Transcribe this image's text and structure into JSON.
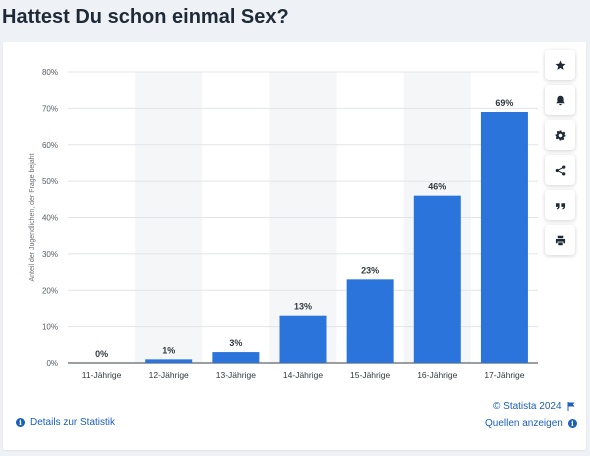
{
  "page": {
    "title": "Hattest Du schon einmal Sex?"
  },
  "chart_data": {
    "type": "bar",
    "title": "Hattest Du schon einmal Sex?",
    "ylabel": "Anteil der Jugendlichen, der Frage bejaht",
    "xlabel": "",
    "categories": [
      "11-Jährige",
      "12-Jährige",
      "13-Jährige",
      "14-Jährige",
      "15-Jährige",
      "16-Jährige",
      "17-Jährige"
    ],
    "values": [
      0,
      1,
      3,
      13,
      23,
      46,
      69
    ],
    "value_labels": [
      "0%",
      "1%",
      "3%",
      "13%",
      "23%",
      "46%",
      "69%"
    ],
    "ylim": [
      0,
      80
    ],
    "yticks": [
      0,
      10,
      20,
      30,
      40,
      50,
      60,
      70,
      80
    ],
    "ytick_labels": [
      "0%",
      "10%",
      "20%",
      "30%",
      "40%",
      "50%",
      "60%",
      "70%",
      "80%"
    ],
    "grid": true,
    "bar_color": "#2a74db",
    "alternating_band_color": "#f5f6f8"
  },
  "toolbar": {
    "buttons": [
      {
        "name": "star-icon"
      },
      {
        "name": "bell-icon"
      },
      {
        "name": "gear-icon"
      },
      {
        "name": "share-icon"
      },
      {
        "name": "quote-icon"
      },
      {
        "name": "print-icon"
      }
    ]
  },
  "footer": {
    "copyright": "© Statista 2024",
    "details_link": "Details zur Statistik",
    "sources_link": "Quellen anzeigen",
    "info_glyph": "i"
  },
  "colors": {
    "accent": "#1b5fbf",
    "title": "#1f2a37",
    "background": "#eef1f5"
  }
}
